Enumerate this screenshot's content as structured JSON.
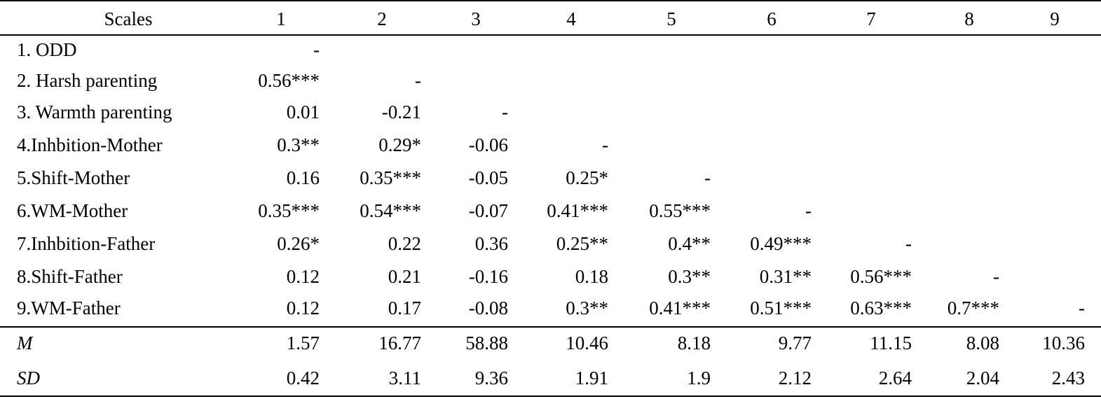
{
  "columns": [
    "Scales",
    "1",
    "2",
    "3",
    "4",
    "5",
    "6",
    "7",
    "8",
    "9"
  ],
  "rows": [
    {
      "label": "1. ODD",
      "cells": [
        "-",
        "",
        "",
        "",
        "",
        "",
        "",
        "",
        ""
      ]
    },
    {
      "label": "2. Harsh parenting",
      "cells": [
        "0.56***",
        "-",
        "",
        "",
        "",
        "",
        "",
        "",
        ""
      ]
    },
    {
      "label": "3. Warmth parenting",
      "cells": [
        "0.01",
        "-0.21",
        "-",
        "",
        "",
        "",
        "",
        "",
        ""
      ]
    },
    {
      "label": "4.Inhbition-Mother",
      "cells": [
        "0.3**",
        "0.29*",
        "-0.06",
        "-",
        "",
        "",
        "",
        "",
        ""
      ]
    },
    {
      "label": "5.Shift-Mother",
      "cells": [
        "0.16",
        "0.35***",
        "-0.05",
        "0.25*",
        "-",
        "",
        "",
        "",
        ""
      ]
    },
    {
      "label": "6.WM-Mother",
      "cells": [
        "0.35***",
        "0.54***",
        "-0.07",
        "0.41***",
        "0.55***",
        "-",
        "",
        "",
        ""
      ]
    },
    {
      "label": "7.Inhbition-Father",
      "cells": [
        "0.26*",
        "0.22",
        "0.36",
        "0.25**",
        "0.4**",
        "0.49***",
        "-",
        "",
        ""
      ]
    },
    {
      "label": "8.Shift-Father",
      "cells": [
        "0.12",
        "0.21",
        "-0.16",
        "0.18",
        "0.3**",
        "0.31**",
        "0.56***",
        "-",
        ""
      ]
    },
    {
      "label": "9.WM-Father",
      "cells": [
        "0.12",
        "0.17",
        "-0.08",
        "0.3**",
        "0.41***",
        "0.51***",
        "0.63***",
        "0.7***",
        "-"
      ]
    }
  ],
  "summary": [
    {
      "label": "M",
      "cells": [
        "1.57",
        "16.77",
        "58.88",
        "10.46",
        "8.18",
        "9.77",
        "11.15",
        "8.08",
        "10.36"
      ]
    },
    {
      "label": "SD",
      "cells": [
        "0.42",
        "3.11",
        "9.36",
        "1.91",
        "1.9",
        "2.12",
        "2.64",
        "2.04",
        "2.43"
      ]
    }
  ]
}
